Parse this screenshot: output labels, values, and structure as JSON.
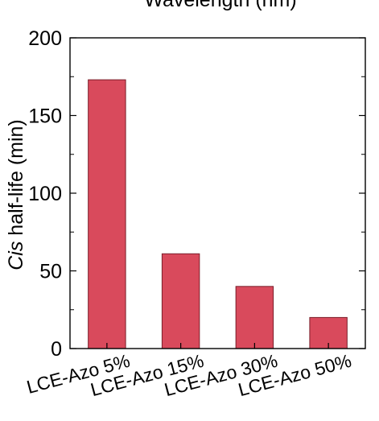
{
  "chart_data": {
    "type": "bar",
    "categories": [
      "LCE-Azo 5%",
      "LCE-Azo 15%",
      "LCE-Azo 30%",
      "LCE-Azo 50%"
    ],
    "values": [
      173,
      61,
      40,
      20
    ],
    "xlabel": "",
    "ylabel_italic": "Cis",
    "ylabel_rest": " half-life (min)",
    "ylim": [
      0,
      200
    ],
    "yticks": [
      0,
      50,
      100,
      150,
      200
    ],
    "grid": false,
    "bar_color": "#d94a5c",
    "bar_edge_color": "#7a1f2a",
    "top_cropped_label": "Wavelength (nm)"
  }
}
